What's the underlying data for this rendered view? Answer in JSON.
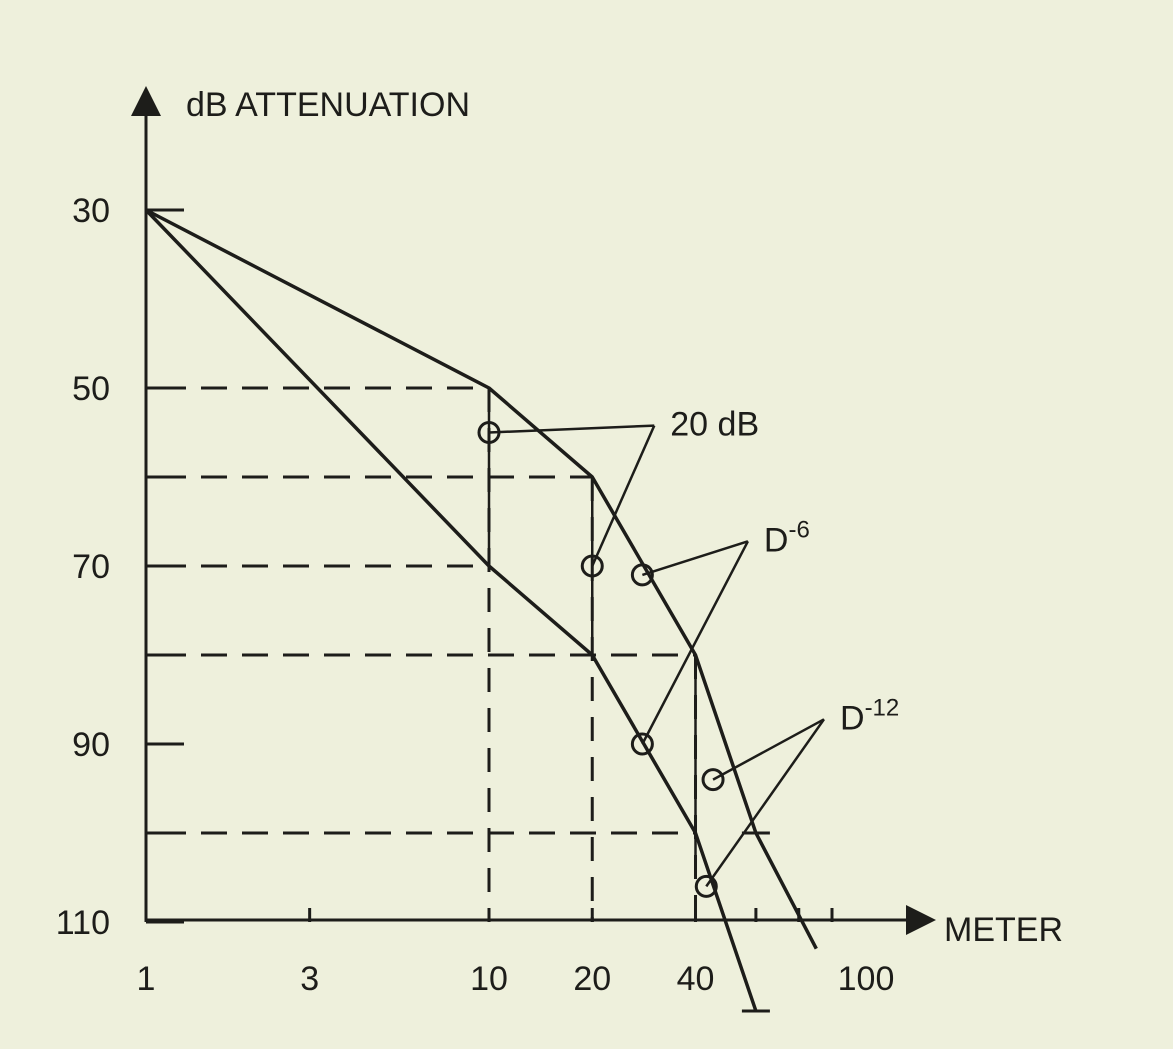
{
  "chart_data": {
    "type": "line",
    "title": "",
    "ylabel": "dB ATTENUATION",
    "xlabel": "METER",
    "x_scale": "log",
    "xlim": [
      1,
      200
    ],
    "ylim": [
      110,
      30
    ],
    "x_ticks": [
      1,
      3,
      10,
      20,
      40,
      100
    ],
    "x_tick_labels": [
      "1",
      "3",
      "10",
      "20",
      "40",
      "100"
    ],
    "x_minor_ticks": [
      60,
      80
    ],
    "y_ticks": [
      30,
      50,
      70,
      90,
      110
    ],
    "y_tick_labels": [
      "30",
      "50",
      "70",
      "90",
      "110"
    ],
    "y_minor_ticks": [
      60,
      80,
      100
    ],
    "series": [
      {
        "name": "",
        "x": [
          1,
          10,
          20,
          40,
          60,
          90
        ],
        "y": [
          30,
          50,
          60,
          80,
          100,
          113
        ]
      },
      {
        "name": "",
        "x": [
          1,
          10,
          20,
          40,
          60
        ],
        "y": [
          30,
          70,
          80,
          100,
          120
        ]
      }
    ],
    "reference_lines": [
      {
        "y": 50,
        "x_end": 10
      },
      {
        "y": 60,
        "x_end": 20
      },
      {
        "y": 70,
        "x_end": 10
      },
      {
        "y": 80,
        "x_end": 40
      },
      {
        "y": 100,
        "x_end": 40
      },
      {
        "x": 10,
        "y_from": 50,
        "y_to": 110
      },
      {
        "x": 20,
        "y_from": 60,
        "y_to": 110
      },
      {
        "x": 40,
        "y_from": 80,
        "y_to": 110
      }
    ],
    "solid_drops": [
      {
        "x": 10,
        "y_from": 50,
        "y_to": 70
      },
      {
        "x": 20,
        "y_from": 60,
        "y_to": 80
      },
      {
        "x": 40,
        "y_from": 80,
        "y_to": 100
      },
      {
        "x": 40,
        "y_from": 100,
        "y_to": 104
      }
    ],
    "end_marks": [
      {
        "x": 60,
        "y": 100
      },
      {
        "x": 60,
        "y": 120
      }
    ],
    "markers": [
      {
        "x": 10,
        "y": 55
      },
      {
        "x": 20,
        "y": 70
      },
      {
        "x": 28,
        "y": 71
      },
      {
        "x": 28,
        "y": 90
      },
      {
        "x": 45,
        "y": 94
      },
      {
        "x": 43,
        "y": 106
      }
    ],
    "annotations": [
      {
        "text": "20 dB",
        "x": 32,
        "y": 54,
        "points_to": [
          [
            10,
            55
          ],
          [
            20,
            70
          ]
        ]
      },
      {
        "text": "D",
        "sup": "-6",
        "x": 60,
        "y": 67,
        "points_to": [
          [
            28,
            71
          ],
          [
            28,
            90
          ]
        ]
      },
      {
        "text": "D",
        "sup": "-12",
        "x": 100,
        "y": 87,
        "points_to": [
          [
            45,
            94
          ],
          [
            43,
            106
          ]
        ]
      }
    ],
    "grid": false,
    "legend": "none"
  }
}
